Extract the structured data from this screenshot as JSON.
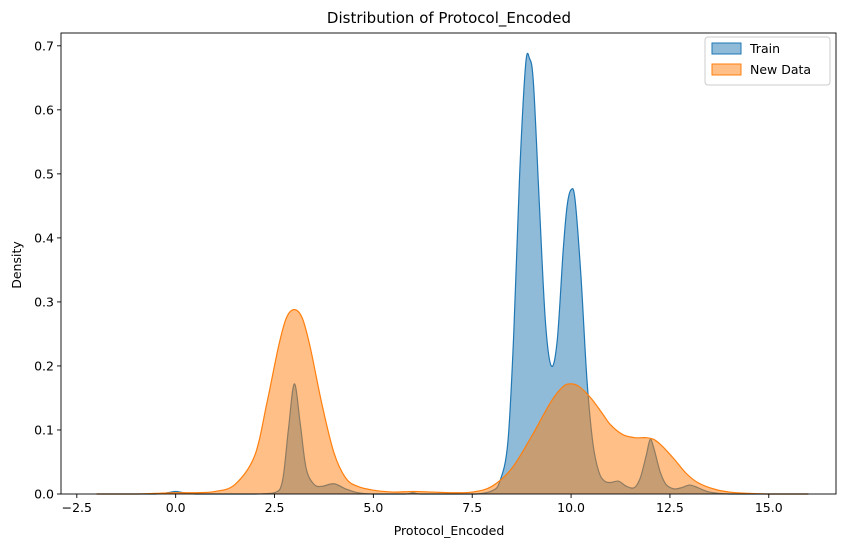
{
  "chart_data": {
    "type": "area",
    "title": "Distribution of Protocol_Encoded",
    "xlabel": "Protocol_Encoded",
    "ylabel": "Density",
    "xlim": [
      -2.9,
      16.7
    ],
    "ylim": [
      0,
      0.72
    ],
    "x_ticks": [
      -2.5,
      0.0,
      2.5,
      5.0,
      7.5,
      10.0,
      12.5,
      15.0
    ],
    "x_tick_labels": [
      "−2.5",
      "0.0",
      "2.5",
      "5.0",
      "7.5",
      "10.0",
      "12.5",
      "15.0"
    ],
    "y_ticks": [
      0.0,
      0.1,
      0.2,
      0.3,
      0.4,
      0.5,
      0.6,
      0.7
    ],
    "y_tick_labels": [
      "0.0",
      "0.1",
      "0.2",
      "0.3",
      "0.4",
      "0.5",
      "0.6",
      "0.7"
    ],
    "grid": false,
    "legend_position": "top-right",
    "series": [
      {
        "name": "Train",
        "line_color": "#1f77b4",
        "fill_color": "#1f77b4",
        "fill_opacity": 0.5,
        "x": [
          -2.0,
          -1.0,
          -0.5,
          -0.2,
          0.0,
          0.2,
          0.5,
          1.0,
          2.0,
          2.5,
          2.7,
          2.85,
          3.0,
          3.15,
          3.3,
          3.5,
          3.7,
          4.0,
          4.3,
          4.6,
          5.0,
          5.8,
          6.0,
          6.2,
          7.0,
          7.6,
          8.0,
          8.2,
          8.4,
          8.55,
          8.7,
          8.85,
          8.95,
          9.05,
          9.2,
          9.35,
          9.5,
          9.65,
          9.8,
          9.9,
          10.0,
          10.1,
          10.25,
          10.4,
          10.55,
          10.7,
          10.85,
          11.0,
          11.2,
          11.4,
          11.6,
          11.75,
          11.9,
          12.0,
          12.1,
          12.25,
          12.4,
          12.6,
          12.8,
          13.0,
          13.2,
          13.5,
          14.0,
          15.0,
          16.0
        ],
        "values": [
          0.0,
          0.0,
          0.0,
          0.002,
          0.004,
          0.002,
          0.0,
          0.0,
          0.0,
          0.002,
          0.02,
          0.1,
          0.172,
          0.11,
          0.04,
          0.015,
          0.012,
          0.016,
          0.008,
          0.002,
          0.0,
          0.0,
          0.002,
          0.0,
          0.0,
          0.0,
          0.005,
          0.02,
          0.08,
          0.25,
          0.5,
          0.67,
          0.68,
          0.64,
          0.45,
          0.27,
          0.2,
          0.24,
          0.38,
          0.45,
          0.475,
          0.46,
          0.34,
          0.18,
          0.08,
          0.035,
          0.02,
          0.018,
          0.02,
          0.012,
          0.01,
          0.025,
          0.06,
          0.085,
          0.07,
          0.035,
          0.015,
          0.008,
          0.01,
          0.014,
          0.01,
          0.003,
          0.0,
          0.0,
          0.0
        ]
      },
      {
        "name": "New Data",
        "line_color": "#ff7f0e",
        "fill_color": "#ff7f0e",
        "fill_opacity": 0.5,
        "x": [
          -2.0,
          -1.0,
          -0.5,
          0.0,
          0.5,
          1.0,
          1.5,
          2.0,
          2.3,
          2.6,
          2.8,
          3.0,
          3.2,
          3.4,
          3.7,
          4.0,
          4.3,
          4.6,
          5.0,
          5.5,
          6.0,
          6.5,
          7.0,
          7.5,
          8.0,
          8.5,
          9.0,
          9.5,
          9.8,
          10.0,
          10.2,
          10.5,
          10.8,
          11.0,
          11.3,
          11.6,
          11.9,
          12.1,
          12.3,
          12.6,
          12.9,
          13.2,
          13.6,
          14.0,
          14.5,
          15.0,
          16.0
        ],
        "values": [
          0.0,
          0.0,
          0.001,
          0.002,
          0.002,
          0.004,
          0.015,
          0.06,
          0.14,
          0.23,
          0.275,
          0.288,
          0.275,
          0.23,
          0.14,
          0.065,
          0.025,
          0.012,
          0.006,
          0.003,
          0.004,
          0.003,
          0.002,
          0.003,
          0.012,
          0.04,
          0.09,
          0.145,
          0.168,
          0.172,
          0.168,
          0.15,
          0.125,
          0.108,
          0.093,
          0.088,
          0.088,
          0.085,
          0.075,
          0.055,
          0.033,
          0.018,
          0.008,
          0.003,
          0.001,
          0.0,
          0.0
        ]
      }
    ]
  }
}
